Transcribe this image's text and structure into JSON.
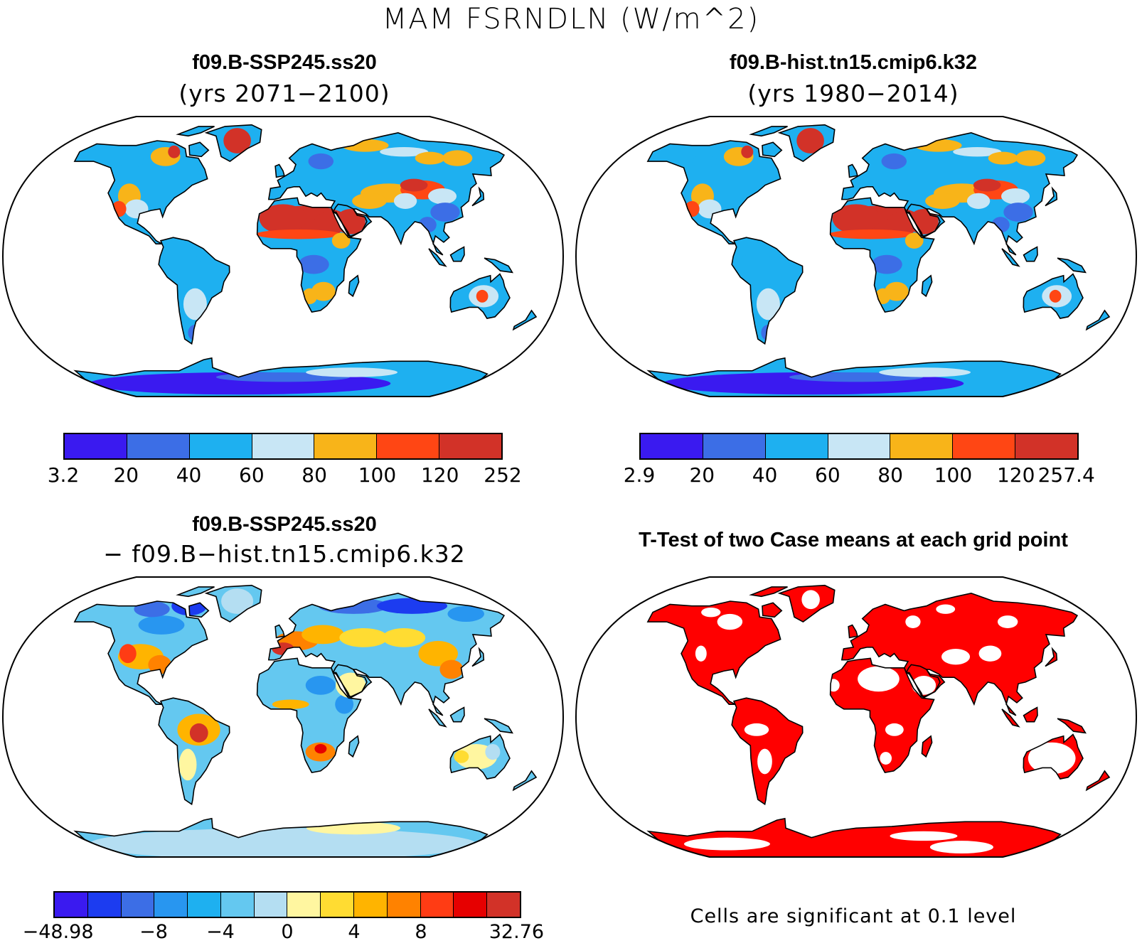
{
  "figure_title": "MAM FSRNDLN (W/m^2)",
  "panels": [
    {
      "title": "f09.B-SSP245.ss20",
      "subtitle": "(yrs 2071−2100)",
      "colorbar": {
        "colors": [
          "#3a1af0",
          "#3c6ee6",
          "#1eb0f0",
          "#c8e6f5",
          "#f8b419",
          "#ff4614",
          "#d23228"
        ],
        "labels": [
          "3.2",
          "20",
          "40",
          "60",
          "80",
          "100",
          "120",
          "252"
        ]
      }
    },
    {
      "title": "f09.B-hist.tn15.cmip6.k32",
      "subtitle": "(yrs 1980−2014)",
      "colorbar": {
        "colors": [
          "#3a1af0",
          "#3c6ee6",
          "#1eb0f0",
          "#c8e6f5",
          "#f8b419",
          "#ff4614",
          "#d23228"
        ],
        "labels": [
          "2.9",
          "20",
          "40",
          "60",
          "80",
          "100",
          "120",
          "257.4"
        ]
      }
    },
    {
      "title": "f09.B-SSP245.ss20",
      "subtitle": "− f09.B−hist.tn15.cmip6.k32",
      "colorbar": {
        "colors": [
          "#3a1af0",
          "#1c3cf0",
          "#3c6ee6",
          "#2896f0",
          "#1eb0f0",
          "#64c8f0",
          "#b4def2",
          "#fff6a0",
          "#ffdc32",
          "#ffb400",
          "#ff8200",
          "#ff3c14",
          "#e60000",
          "#d23228"
        ],
        "labels": [
          "−48.98",
          "",
          "−8",
          "",
          "−4",
          "",
          "0",
          "",
          "4",
          "",
          "8",
          "",
          "",
          "",
          "32.76"
        ]
      }
    },
    {
      "title": "T-Test of two Case means at each grid point",
      "note": "Cells are significant at 0.1 level"
    }
  ],
  "colors": {
    "land_sig": "#ff0000",
    "coast": "#000000"
  }
}
